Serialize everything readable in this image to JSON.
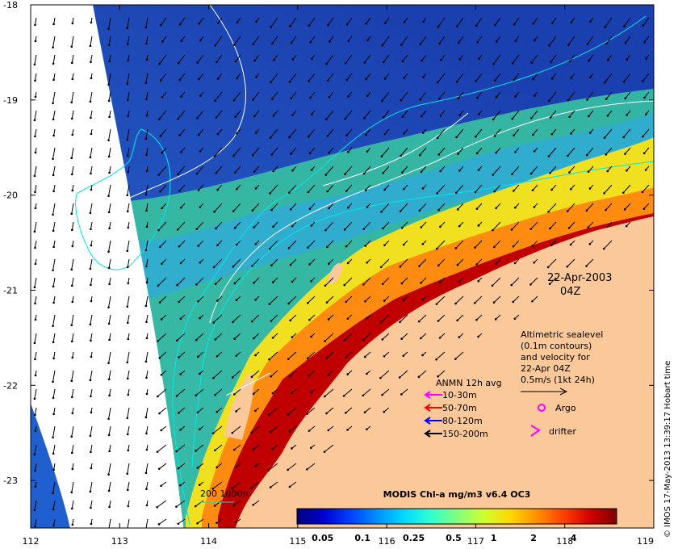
{
  "map": {
    "lat_labels": [
      "-18",
      "-19",
      "-20",
      "-21",
      "-22",
      "-23"
    ],
    "lon_labels": [
      "112",
      "113",
      "114",
      "115",
      "116",
      "117",
      "118",
      "119"
    ],
    "lat_range": [
      -23.5,
      -18
    ],
    "lon_range": [
      112,
      119
    ]
  },
  "date": {
    "line1": "22-Apr-2003",
    "line2": "04Z"
  },
  "altimetry_note": [
    "Altimetric sealevel",
    "(0.1m contours)",
    "and velocity for",
    "22-Apr 04Z",
    "0.5m/s (1kt 24h)"
  ],
  "anmn": {
    "title": "ANMN 12h avg",
    "items": [
      {
        "label": "10-30m",
        "color": "#ff00ff"
      },
      {
        "label": "50-70m",
        "color": "#ff0000"
      },
      {
        "label": "80-120m",
        "color": "#0000ff"
      },
      {
        "label": "150-200m",
        "color": "#000000"
      }
    ]
  },
  "argo_label": "Argo",
  "drifter_label": "drifter",
  "isobath_label": "200  1000m",
  "colorbar": {
    "title": "MODIS Chl-a mg/m3 v6.4 OC3",
    "ticks": [
      "0.05",
      "0.1",
      "0.25",
      "0.5",
      "1",
      "2",
      "4"
    ],
    "colors": [
      "#00007f",
      "#0000d0",
      "#0040ff",
      "#0090ff",
      "#00d8ff",
      "#30ffd0",
      "#80ff80",
      "#d0ff30",
      "#ffd800",
      "#ff9000",
      "#ff4000",
      "#d00000",
      "#7f0000"
    ]
  },
  "credit": "© IMOS 17-May-2013 13:39:17 Hobart time",
  "colors": {
    "land": "#fbc89a",
    "deep_ocean": "#1c47b8",
    "swath_gap": "#ffffff",
    "isobath": "#00e8e8",
    "sla_contour": "#ffffff"
  }
}
